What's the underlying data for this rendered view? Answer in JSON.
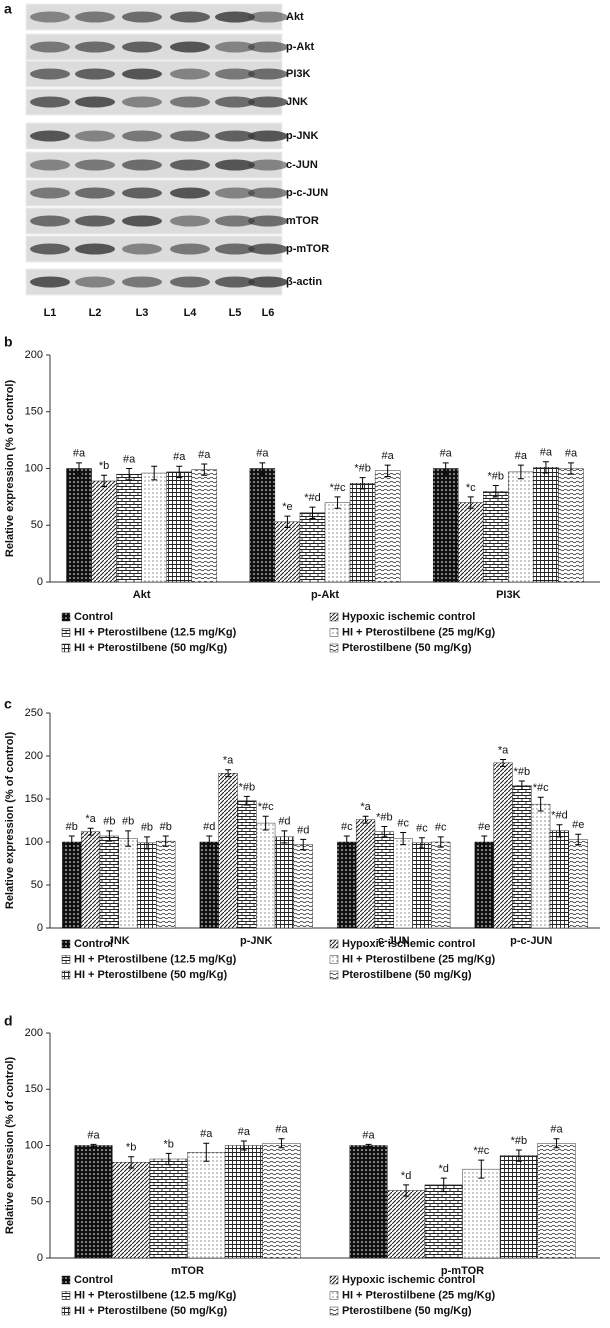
{
  "blot": {
    "label": "a",
    "proteins": [
      "Akt",
      "p-Akt",
      "PI3K",
      "JNK",
      "p-JNK",
      "c-JUN",
      "p-c-JUN",
      "mTOR",
      "p-mTOR",
      "β-actin"
    ],
    "lanes": [
      "L1",
      "L2",
      "L3",
      "L4",
      "L5",
      "L6"
    ]
  },
  "chart_data": [
    {
      "type": "bar",
      "label": "b",
      "y_label": "Relative expression (% of control)",
      "categories": [
        "Akt",
        "p-Akt",
        "PI3K"
      ],
      "ylim": [
        0,
        200
      ],
      "yticks": [
        0,
        50,
        100,
        150,
        200
      ],
      "series": [
        {
          "name": "Control",
          "color": "#000000",
          "pattern": "pat-dots",
          "values": [
            100,
            100,
            100
          ],
          "errors": [
            5,
            5,
            5
          ],
          "labels": [
            "#a",
            "#a",
            "#a"
          ]
        },
        {
          "name": "Hypoxic ischemic control",
          "color": "#000000",
          "pattern": "pat-diag",
          "values": [
            89,
            53,
            70
          ],
          "errors": [
            5,
            5,
            5
          ],
          "labels": [
            "*b",
            "*e",
            "*c"
          ]
        },
        {
          "name": "HI + Pterostilbene (12.5 mg/Kg)",
          "color": "#000000",
          "pattern": "pat-brick",
          "values": [
            95,
            61,
            80
          ],
          "errors": [
            5,
            5,
            5
          ],
          "labels": [
            "#a",
            "*#d",
            "*#b"
          ]
        },
        {
          "name": "HI + Pterostilbene (25 mg/Kg)",
          "color": "#000000",
          "pattern": "pat-sparse",
          "values": [
            96,
            70,
            97
          ],
          "errors": [
            6,
            5,
            6
          ],
          "labels": [
            null,
            "*#c",
            "#a"
          ]
        },
        {
          "name": "HI + Pterostilbene (50 mg/Kg)",
          "color": "#000000",
          "pattern": "pat-grid",
          "values": [
            97,
            87,
            101
          ],
          "errors": [
            5,
            5,
            5
          ],
          "labels": [
            "#a",
            "*#b",
            "#a"
          ]
        },
        {
          "name": "Pterostilbene (50 mg/Kg)",
          "color": "#000000",
          "pattern": "pat-wave",
          "values": [
            99,
            98,
            100
          ],
          "errors": [
            5,
            5,
            5
          ],
          "labels": [
            "#a",
            "#a",
            "#a"
          ]
        }
      ]
    },
    {
      "type": "bar",
      "label": "c",
      "y_label": "Relative expression (% of control)",
      "categories": [
        "JNK",
        "p-JNK",
        "c-JUN",
        "p-c-JUN"
      ],
      "ylim": [
        0,
        250
      ],
      "yticks": [
        0,
        50,
        100,
        150,
        200,
        250
      ],
      "series": [
        {
          "name": "Control",
          "color": "#000000",
          "pattern": "pat-dots",
          "values": [
            100,
            100,
            100,
            100
          ],
          "errors": [
            7,
            7,
            7,
            7
          ],
          "labels": [
            "#b",
            "#d",
            "#c",
            "#e"
          ]
        },
        {
          "name": "Hypoxic ischemic control",
          "color": "#000000",
          "pattern": "pat-diag",
          "values": [
            112,
            180,
            126,
            192
          ],
          "errors": [
            4,
            4,
            4,
            4
          ],
          "labels": [
            "*a",
            "*a",
            "*a",
            "*a"
          ]
        },
        {
          "name": "HI + Pterostilbene (12.5 mg/Kg)",
          "color": "#000000",
          "pattern": "pat-brick",
          "values": [
            107,
            148,
            112,
            166
          ],
          "errors": [
            6,
            5,
            6,
            5
          ],
          "labels": [
            "#b",
            "*#b",
            "*#b",
            "*#b"
          ]
        },
        {
          "name": "HI + Pterostilbene (25 mg/Kg)",
          "color": "#000000",
          "pattern": "pat-sparse",
          "values": [
            104,
            122,
            104,
            144
          ],
          "errors": [
            9,
            8,
            7,
            8
          ],
          "labels": [
            "#b",
            "*#c",
            "#c",
            "*#c"
          ]
        },
        {
          "name": "HI + Pterostilbene (50 mg/Kg)",
          "color": "#000000",
          "pattern": "pat-grid",
          "values": [
            99,
            106,
            99,
            113
          ],
          "errors": [
            7,
            7,
            6,
            7
          ],
          "labels": [
            "#b",
            "#d",
            "#c",
            "*#d"
          ]
        },
        {
          "name": "Pterostilbene (50 mg/Kg)",
          "color": "#000000",
          "pattern": "pat-wave",
          "values": [
            101,
            97,
            100,
            103
          ],
          "errors": [
            6,
            6,
            6,
            6
          ],
          "labels": [
            "#b",
            "#d",
            "#c",
            "#e"
          ]
        }
      ]
    },
    {
      "type": "bar",
      "label": "d",
      "y_label": "Relative expression (% of control)",
      "categories": [
        "mTOR",
        "p-mTOR"
      ],
      "ylim": [
        0,
        200
      ],
      "yticks": [
        0,
        50,
        100,
        150,
        200
      ],
      "series": [
        {
          "name": "Control",
          "color": "#000000",
          "pattern": "pat-dots",
          "values": [
            100,
            100
          ],
          "errors": [
            1,
            1
          ],
          "labels": [
            "#a",
            "#a"
          ]
        },
        {
          "name": "Hypoxic ischemic control",
          "color": "#000000",
          "pattern": "pat-diag",
          "values": [
            85,
            60
          ],
          "errors": [
            5,
            5
          ],
          "labels": [
            "*b",
            "*d"
          ]
        },
        {
          "name": "HI + Pterostilbene (12.5 mg/Kg)",
          "color": "#000000",
          "pattern": "pat-brick",
          "values": [
            88,
            65
          ],
          "errors": [
            5,
            6
          ],
          "labels": [
            "*b",
            "*d"
          ]
        },
        {
          "name": "HI + Pterostilbene (25 mg/Kg)",
          "color": "#000000",
          "pattern": "pat-sparse",
          "values": [
            94,
            79
          ],
          "errors": [
            8,
            8
          ],
          "labels": [
            "#a",
            "*#c"
          ]
        },
        {
          "name": "HI + Pterostilbene (50 mg/Kg)",
          "color": "#000000",
          "pattern": "pat-grid",
          "values": [
            100,
            91
          ],
          "errors": [
            4,
            5
          ],
          "labels": [
            "#a",
            "*#b"
          ]
        },
        {
          "name": "Pterostilbene (50 mg/Kg)",
          "color": "#000000",
          "pattern": "pat-wave",
          "values": [
            102,
            102
          ],
          "errors": [
            4,
            4
          ],
          "labels": [
            "#a",
            "#a"
          ]
        }
      ]
    }
  ]
}
